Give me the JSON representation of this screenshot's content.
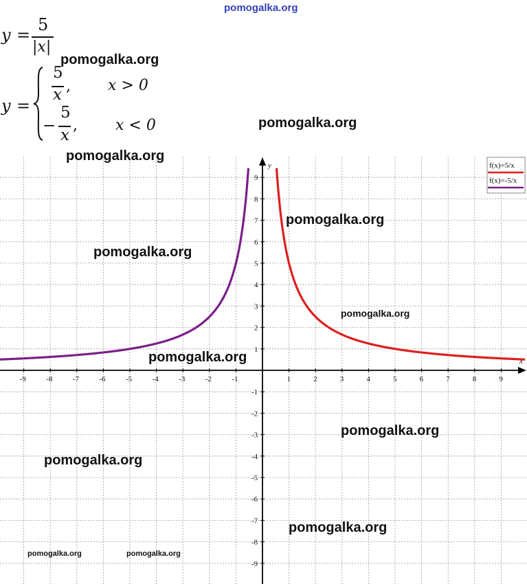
{
  "formula": {
    "y": "y",
    "eq": "=",
    "frac_num": "5",
    "frac_den": "|x|",
    "case1_num": "5",
    "case1_den": "x",
    "case1_cond": "x > 0",
    "case2_minus": "−",
    "case2_num": "5",
    "case2_den": "x",
    "case2_cond": "x < 0",
    "comma": ","
  },
  "watermarks": {
    "top": "pomogalka.org",
    "w1": "pomogalka.org",
    "w2": "pomogalka.org",
    "w3": "pomogalka.org",
    "w4": "pomogalka.org",
    "w5": "pomogalka.org",
    "w6": "pomogalka.org",
    "w7": "pomogalka.org",
    "w8": "pomogalka.org",
    "w9": "pomogalka.org",
    "w10": "pomogalka.org",
    "w11": "pomogalka.org",
    "w12": "pomogalka.org"
  },
  "chart_data": {
    "type": "line",
    "title": "",
    "xlabel": "x",
    "ylabel": "y",
    "xlim": [
      -10,
      10
    ],
    "ylim": [
      -10,
      10
    ],
    "xticks": [
      -9,
      -8,
      -7,
      -6,
      -5,
      -4,
      -3,
      -2,
      -1,
      1,
      2,
      3,
      4,
      5,
      6,
      7,
      8,
      9
    ],
    "yticks": [
      9,
      8,
      7,
      6,
      5,
      4,
      3,
      2,
      1,
      -1,
      -2,
      -3,
      -4,
      -5,
      -6,
      -7,
      -8,
      -9
    ],
    "grid": true,
    "legend_position": "top-right",
    "series": [
      {
        "name": "f(x)=5/x",
        "color": "#dd1f1f",
        "domain": "x > 0",
        "x": [
          0.55,
          0.6,
          0.7,
          0.8,
          1,
          1.25,
          1.5,
          2,
          2.5,
          3,
          4,
          5,
          6,
          7,
          8,
          9,
          9.9
        ],
        "y": [
          9.09,
          8.33,
          7.14,
          6.25,
          5,
          4,
          3.33,
          2.5,
          2,
          1.67,
          1.25,
          1,
          0.83,
          0.71,
          0.63,
          0.56,
          0.51
        ]
      },
      {
        "name": "f(x)=-5/x",
        "color": "#7b1f8a",
        "domain": "x < 0",
        "x": [
          -9.9,
          -9,
          -8,
          -7,
          -6,
          -5,
          -4,
          -3,
          -2.5,
          -2,
          -1.5,
          -1.25,
          -1,
          -0.8,
          -0.7,
          -0.6,
          -0.55
        ],
        "y": [
          0.51,
          0.56,
          0.63,
          0.71,
          0.83,
          1,
          1.25,
          1.67,
          2,
          2.5,
          3.33,
          4,
          5,
          6.25,
          7.14,
          8.33,
          9.09
        ]
      }
    ]
  }
}
